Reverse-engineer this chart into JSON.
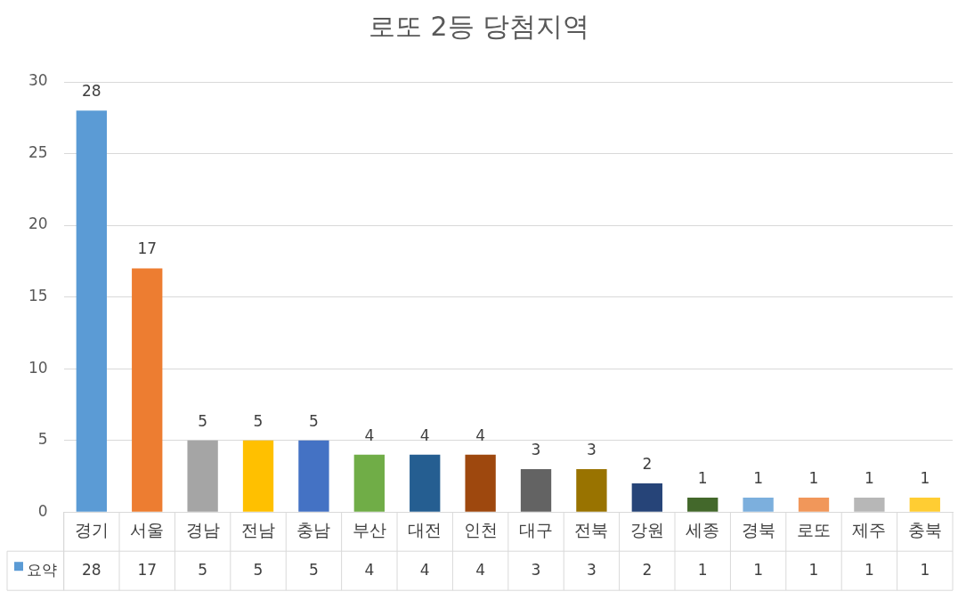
{
  "chart_data": {
    "type": "bar",
    "title": "로또 2등 당첨지역",
    "categories": [
      "경기",
      "서울",
      "경남",
      "전남",
      "충남",
      "부산",
      "대전",
      "인천",
      "대구",
      "전북",
      "강원",
      "세종",
      "경북",
      "로또",
      "제주",
      "충북"
    ],
    "series": [
      {
        "name": "요약",
        "values": [
          28,
          17,
          5,
          5,
          5,
          4,
          4,
          4,
          3,
          3,
          2,
          1,
          1,
          1,
          1,
          1
        ],
        "colors": [
          "#5b9bd5",
          "#ed7d31",
          "#a5a5a5",
          "#ffc000",
          "#4472c4",
          "#70ad47",
          "#255e91",
          "#9e480e",
          "#636363",
          "#997300",
          "#264478",
          "#43682b",
          "#7cafdd",
          "#f1975a",
          "#b7b7b7",
          "#ffcd33"
        ]
      }
    ],
    "ylim": [
      0,
      30
    ],
    "yticks": [
      0,
      5,
      10,
      15,
      20,
      25,
      30
    ],
    "grid": "y",
    "data_labels": true,
    "annotations": [
      "28",
      "17",
      "5",
      "5",
      "5",
      "4",
      "4",
      "4",
      "3",
      "3",
      "2",
      "1",
      "1",
      "1",
      "1",
      "1"
    ]
  }
}
